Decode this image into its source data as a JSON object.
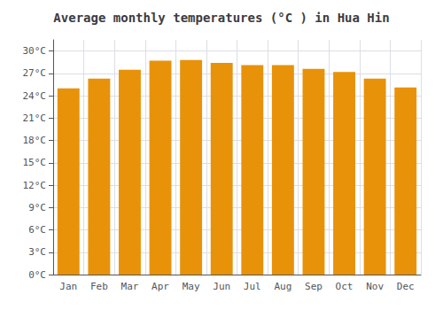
{
  "chart_data": {
    "type": "bar",
    "title": "Average monthly temperatures (°C ) in Hua Hin",
    "categories": [
      "Jan",
      "Feb",
      "Mar",
      "Apr",
      "May",
      "Jun",
      "Jul",
      "Aug",
      "Sep",
      "Oct",
      "Nov",
      "Dec"
    ],
    "values": [
      25.0,
      26.3,
      27.5,
      28.7,
      28.8,
      28.4,
      28.1,
      28.1,
      27.6,
      27.2,
      26.3,
      25.1
    ],
    "color": "#E8920A",
    "ylim": [
      0,
      31.5
    ],
    "yticks": [
      {
        "value": 0,
        "label": "0°C"
      },
      {
        "value": 3,
        "label": "3°C"
      },
      {
        "value": 6,
        "label": "6°C"
      },
      {
        "value": 9,
        "label": "9°C"
      },
      {
        "value": 12,
        "label": "12°C"
      },
      {
        "value": 15,
        "label": "15°C"
      },
      {
        "value": 18,
        "label": "18°C"
      },
      {
        "value": 21,
        "label": "21°C"
      },
      {
        "value": 24,
        "label": "24°C"
      },
      {
        "value": 27,
        "label": "27°C"
      },
      {
        "value": 30,
        "label": "30°C"
      }
    ],
    "grid": true
  }
}
